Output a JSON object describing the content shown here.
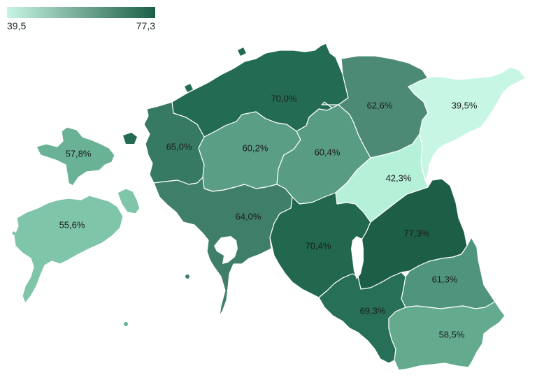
{
  "legend": {
    "min": "39,5",
    "max": "77,3",
    "color_min": "#c8f5e4",
    "color_max": "#1d5e47"
  },
  "counties": [
    {
      "id": "harjumaa",
      "value": 70.0,
      "label": "70,0%",
      "color": "#236c53"
    },
    {
      "id": "laane-virumaa",
      "value": 62.6,
      "label": "62,6%",
      "color": "#4c8a76"
    },
    {
      "id": "ida-virumaa",
      "value": 39.5,
      "label": "39,5%",
      "color": "#c8f6e5"
    },
    {
      "id": "laanemaa",
      "value": 65.0,
      "label": "65,0%",
      "color": "#367a64"
    },
    {
      "id": "raplamaa",
      "value": 60.2,
      "label": "60,2%",
      "color": "#5a9e86"
    },
    {
      "id": "jarvamaa",
      "value": 60.4,
      "label": "60,4%",
      "color": "#589c84"
    },
    {
      "id": "jogevamaa",
      "value": 42.3,
      "label": "42,3%",
      "color": "#b5f0d9"
    },
    {
      "id": "hiiumaa",
      "value": 57.8,
      "label": "57,8%",
      "color": "#69b296"
    },
    {
      "id": "saaremaa",
      "value": 55.6,
      "label": "55,6%",
      "color": "#7fc5a9"
    },
    {
      "id": "parnumaa",
      "value": 64.0,
      "label": "64,0%",
      "color": "#3f7f6a"
    },
    {
      "id": "viljandimaa",
      "value": 70.4,
      "label": "70,4%",
      "color": "#21684f"
    },
    {
      "id": "tartumaa",
      "value": 77.3,
      "label": "77,3%",
      "color": "#1d5e47"
    },
    {
      "id": "polvamaa",
      "value": 61.3,
      "label": "61,3%",
      "color": "#4f947c"
    },
    {
      "id": "valgamaa",
      "value": 69.3,
      "label": "69,3%",
      "color": "#276f56"
    },
    {
      "id": "vorumaa",
      "value": 58.5,
      "label": "58,5%",
      "color": "#63aa8f"
    }
  ]
}
